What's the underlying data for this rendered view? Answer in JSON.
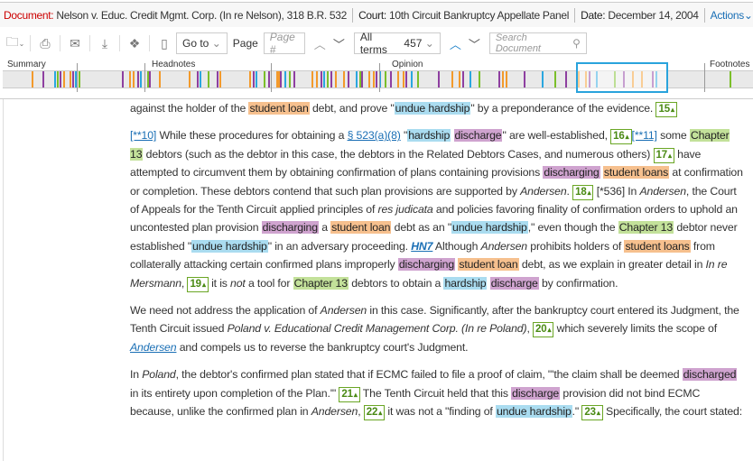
{
  "header": {
    "doc_label": "Document:",
    "doc": "Nelson v. Educ. Credit Mgmt. Corp. (In re Nelson), 318 B.R. 532",
    "court_label": "Court:",
    "court": "10th Circuit Bankruptcy Appellate Panel",
    "date_label": "Date:",
    "date": "December 14, 2004",
    "actions": "Actions"
  },
  "toolbar": {
    "goto": "Go to",
    "page_label": "Page",
    "page_placeholder": "Page #",
    "terms": "All terms",
    "terms_count": "457",
    "search_placeholder": "Search Document"
  },
  "map": {
    "sections": [
      "Summary",
      "Headnotes",
      "Opinion",
      "Footnotes"
    ],
    "colors": {
      "orange": "#f39a2b",
      "purple": "#8e3fa0",
      "blue": "#2aa7df",
      "green": "#7bbf2a"
    }
  },
  "paragraphs": [
    [
      {
        "t": "against the holder of the "
      },
      {
        "t": "student loan",
        "c": "o"
      },
      {
        "t": " debt, and prove \""
      },
      {
        "t": "undue hardship",
        "c": "b"
      },
      {
        "t": "\" by a preponderance of the evidence. "
      },
      {
        "t": "15",
        "c": "ref"
      }
    ],
    [
      {
        "t": "[**10]",
        "c": "link"
      },
      {
        "t": " While these procedures for obtaining a "
      },
      {
        "t": "§ 523(a)(8)",
        "c": "link"
      },
      {
        "t": " \""
      },
      {
        "t": "hardship",
        "c": "b"
      },
      {
        "t": " "
      },
      {
        "t": "discharge",
        "c": "p"
      },
      {
        "t": "\" are well-established, "
      },
      {
        "t": "16",
        "c": "ref"
      },
      {
        "t": "[**11]",
        "c": "link"
      },
      {
        "t": " some "
      },
      {
        "t": "Chapter 13",
        "c": "g"
      },
      {
        "t": " debtors (such as the debtor in this case, the debtors in the Related Debtors Cases, and numerous others) "
      },
      {
        "t": "17",
        "c": "ref"
      },
      {
        "t": " have attempted to circumvent them by obtaining confirmation of plans containing provisions "
      },
      {
        "t": "discharging",
        "c": "p"
      },
      {
        "t": " "
      },
      {
        "t": "student loans",
        "c": "o"
      },
      {
        "t": " at confirmation or completion. These debtors contend that such plan provisions are supported by "
      },
      {
        "t": "Andersen",
        "c": "i"
      },
      {
        "t": ". "
      },
      {
        "t": "18",
        "c": "ref"
      },
      {
        "t": " [*536]  In "
      },
      {
        "t": "Andersen",
        "c": "i"
      },
      {
        "t": ", the Court of Appeals for the Tenth Circuit applied principles of "
      },
      {
        "t": "res judicata",
        "c": "i"
      },
      {
        "t": " and policies favoring finality of confirmation orders to uphold an uncontested plan provision "
      },
      {
        "t": "discharging",
        "c": "p"
      },
      {
        "t": " a "
      },
      {
        "t": "student loan",
        "c": "o"
      },
      {
        "t": " debt as an \""
      },
      {
        "t": "undue hardship",
        "c": "b"
      },
      {
        "t": ",\" even though the "
      },
      {
        "t": "Chapter 13",
        "c": "g"
      },
      {
        "t": " debtor never established \""
      },
      {
        "t": "undue hardship",
        "c": "b"
      },
      {
        "t": "\" in an adversary proceeding. "
      },
      {
        "t": "HN7",
        "c": "hn"
      },
      {
        "t": " Although "
      },
      {
        "t": "Andersen",
        "c": "i"
      },
      {
        "t": " prohibits holders of "
      },
      {
        "t": "student loans",
        "c": "o"
      },
      {
        "t": " from collaterally attacking certain confirmed plans improperly "
      },
      {
        "t": "discharging",
        "c": "p"
      },
      {
        "t": " "
      },
      {
        "t": "student loan",
        "c": "o"
      },
      {
        "t": " debt, as we explain in greater detail in "
      },
      {
        "t": "In re Mersmann",
        "c": "i"
      },
      {
        "t": ", "
      },
      {
        "t": "19",
        "c": "ref"
      },
      {
        "t": " it is "
      },
      {
        "t": "not",
        "c": "i"
      },
      {
        "t": " a tool for "
      },
      {
        "t": "Chapter 13",
        "c": "g"
      },
      {
        "t": " debtors to obtain a "
      },
      {
        "t": "hardship",
        "c": "b"
      },
      {
        "t": " "
      },
      {
        "t": "discharge",
        "c": "p"
      },
      {
        "t": " by confirmation."
      }
    ],
    [
      {
        "t": "We need not address the application of "
      },
      {
        "t": "Andersen",
        "c": "i"
      },
      {
        "t": " in this case. Significantly, after the bankruptcy court entered its Judgment, the Tenth Circuit issued "
      },
      {
        "t": "Poland v. Educational Credit Management Corp. (In re Poland)",
        "c": "i"
      },
      {
        "t": ", "
      },
      {
        "t": "20",
        "c": "ref"
      },
      {
        "t": " which severely limits the scope of "
      },
      {
        "t": "Andersen",
        "c": "ilink"
      },
      {
        "t": " and compels us to reverse the bankruptcy court's Judgment."
      }
    ],
    [
      {
        "t": "In "
      },
      {
        "t": "Poland",
        "c": "i"
      },
      {
        "t": ", the debtor's confirmed plan stated that if ECMC failed to file a proof of claim, \"'the claim shall be deemed "
      },
      {
        "t": "discharged",
        "c": "p"
      },
      {
        "t": " in its entirety upon completion of the Plan.'\" "
      },
      {
        "t": "21",
        "c": "ref"
      },
      {
        "t": " The Tenth Circuit held that this "
      },
      {
        "t": "discharge",
        "c": "p"
      },
      {
        "t": " provision did not bind ECMC because, unlike the confirmed plan in "
      },
      {
        "t": "Andersen",
        "c": "i"
      },
      {
        "t": ", "
      },
      {
        "t": "22",
        "c": "ref"
      },
      {
        "t": " it was not a \"finding of "
      },
      {
        "t": "undue hardship",
        "c": "b"
      },
      {
        "t": ".\" "
      },
      {
        "t": "23",
        "c": "ref"
      },
      {
        "t": " Specifically, the court stated:"
      }
    ]
  ]
}
